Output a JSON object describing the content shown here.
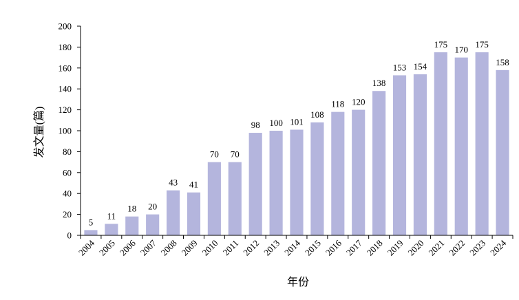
{
  "chart_data": {
    "type": "bar",
    "categories": [
      "2004",
      "2005",
      "2006",
      "2007",
      "2008",
      "2009",
      "2010",
      "2011",
      "2012",
      "2013",
      "2014",
      "2015",
      "2016",
      "2017",
      "2018",
      "2019",
      "2020",
      "2021",
      "2022",
      "2023",
      "2024"
    ],
    "values": [
      5,
      11,
      18,
      20,
      43,
      41,
      70,
      70,
      98,
      100,
      101,
      108,
      118,
      120,
      138,
      153,
      154,
      175,
      170,
      175,
      158
    ],
    "title": "",
    "xlabel": "年份",
    "ylabel": "发文量(篇)",
    "ylim": [
      0,
      200
    ],
    "yticks": [
      0,
      20,
      40,
      60,
      80,
      100,
      120,
      140,
      160,
      180,
      200
    ],
    "grid": false,
    "legend": "none",
    "bar_color": "#b4b5dd",
    "data_labels": true
  }
}
